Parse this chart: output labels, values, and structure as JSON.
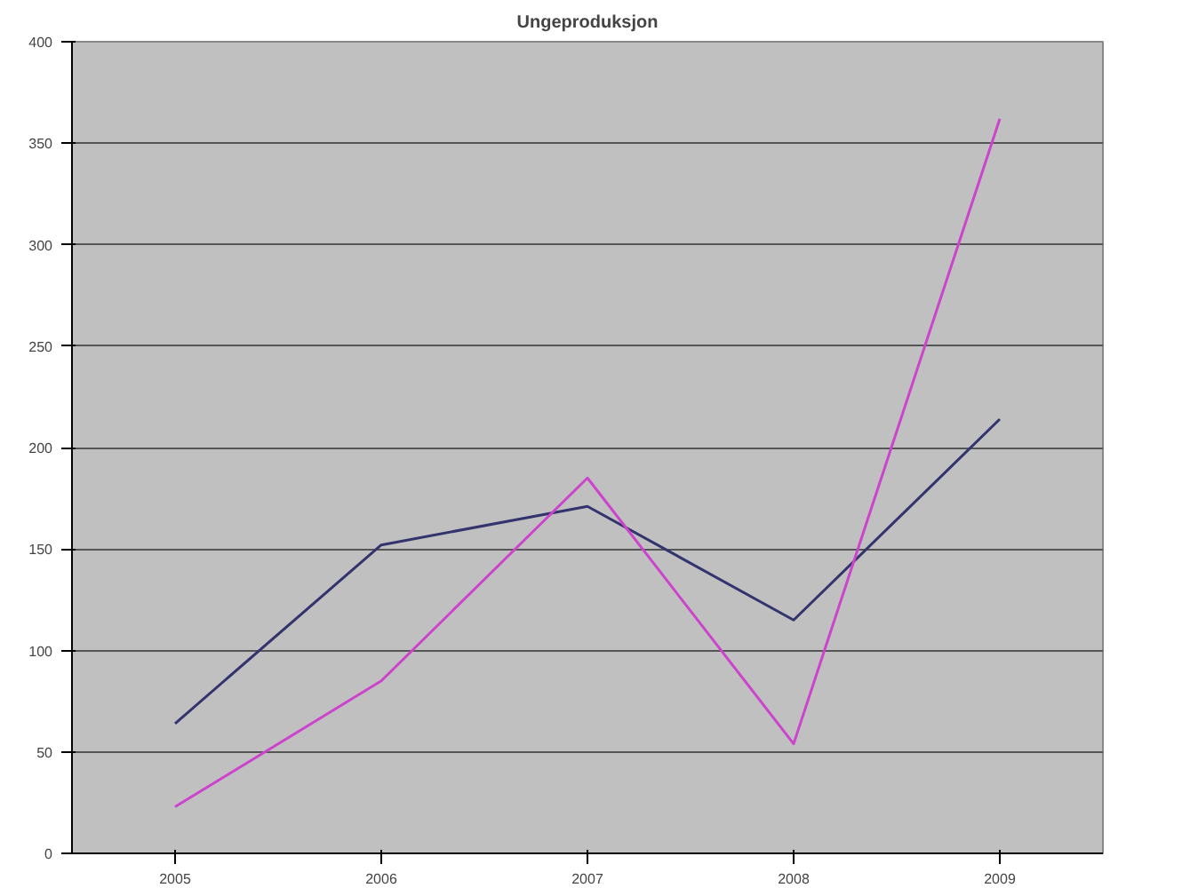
{
  "chart_data": {
    "type": "line",
    "title": "Ungeproduksjon",
    "categories": [
      "2005",
      "2006",
      "2007",
      "2008",
      "2009"
    ],
    "series": [
      {
        "color": "#33336e",
        "values": [
          64,
          152,
          171,
          115,
          214
        ]
      },
      {
        "color": "#cc44cc",
        "values": [
          23,
          85,
          185,
          54,
          362
        ]
      }
    ],
    "ylim": [
      0,
      400
    ],
    "yticks": [
      0,
      50,
      100,
      150,
      200,
      250,
      300,
      350,
      400
    ],
    "grid": "y",
    "marker": "none",
    "line_style": "solid"
  }
}
